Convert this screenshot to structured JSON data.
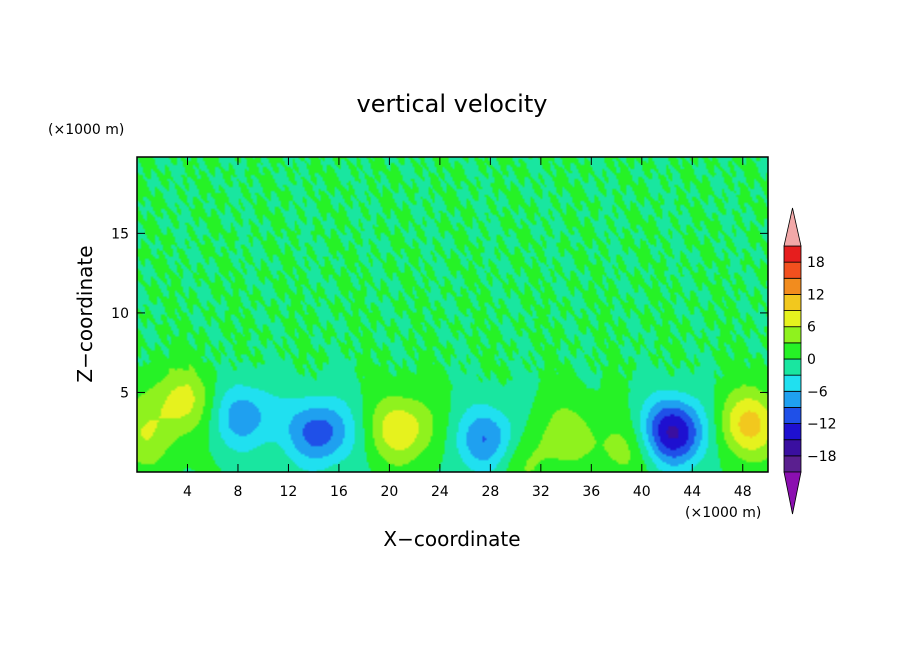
{
  "chart_data": {
    "type": "heatmap",
    "title": "vertical velocity",
    "xlabel": "X−coordinate",
    "ylabel": "Z−coordinate",
    "x_unit": "(×1000 m)",
    "y_unit": "(×1000 m)",
    "xlim": [
      0,
      50
    ],
    "ylim": [
      0,
      19.8
    ],
    "x_ticks": [
      4,
      8,
      12,
      16,
      20,
      24,
      28,
      32,
      36,
      40,
      44,
      48
    ],
    "y_ticks": [
      5,
      10,
      15
    ],
    "x_tick_labels": [
      "4",
      "8",
      "12",
      "16",
      "20",
      "24",
      "28",
      "32",
      "36",
      "40",
      "44",
      "48"
    ],
    "y_tick_labels": [
      "5",
      "10",
      "15"
    ],
    "colorbar": {
      "levels": [
        -21,
        -18,
        -15,
        -12,
        -9,
        -6,
        -3,
        0,
        3,
        6,
        9,
        12,
        15,
        18,
        21
      ],
      "tick_values": [
        -18,
        -12,
        -6,
        0,
        6,
        12,
        18
      ],
      "tick_labels": [
        "−18",
        "−12",
        "−6",
        "0",
        "6",
        "12",
        "18"
      ],
      "colors": [
        "#5a1f8f",
        "#3a0fa0",
        "#1e10d0",
        "#1f50e8",
        "#1fa0f0",
        "#20e0f0",
        "#19e6a0",
        "#26f226",
        "#8ff21e",
        "#e6f21e",
        "#f2c81e",
        "#f28c1e",
        "#f2501e",
        "#e61e1e"
      ],
      "under_color": "#8b0fb0",
      "over_color": "#f2a8a8"
    },
    "features": [
      {
        "x": 3.5,
        "z": 4.5,
        "w": 7.0
      },
      {
        "x": 0.5,
        "z": 2.2,
        "w": 5.0
      },
      {
        "x": 8.5,
        "z": 3.5,
        "w": -8.0
      },
      {
        "x": 14.5,
        "z": 2.5,
        "w": -11.0
      },
      {
        "x": 21.0,
        "z": 2.7,
        "w": 8.5
      },
      {
        "x": 27.8,
        "z": 2.0,
        "w": -9.5
      },
      {
        "x": 34.0,
        "z": 2.5,
        "w": 4.0
      },
      {
        "x": 30.5,
        "z": 0.8,
        "w": 4.0
      },
      {
        "x": 38.8,
        "z": 1.5,
        "w": 4.5
      },
      {
        "x": 42.5,
        "z": 2.5,
        "w": -16.0
      },
      {
        "x": 48.5,
        "z": 3.0,
        "w": 10.0
      }
    ]
  }
}
